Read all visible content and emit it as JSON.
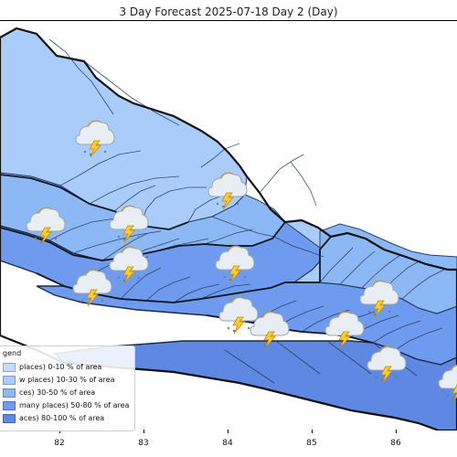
{
  "title": "3 Day Forecast 2025-07-18 Day 2 (Day)",
  "map": {
    "x_ticks": [
      "82",
      "83",
      "84",
      "85",
      "86"
    ],
    "colors": {
      "very_light": "#a9ccfb",
      "light": "#8db8f6",
      "medium": "#6e9bef",
      "dark": "#5f88e3",
      "border": "#1f2a44",
      "outline": "#2a2a2a"
    },
    "weather_icon": "thunderstorm-rain-icon"
  },
  "legend": {
    "title": "gend",
    "items": [
      {
        "label": "places)  0-10 % of area",
        "color": "#c7ddff"
      },
      {
        "label": "w places) 10-30 % of area",
        "color": "#a9ccfb"
      },
      {
        "label": "ces) 30-50  % of area",
        "color": "#8db8f6"
      },
      {
        "label": "many places) 50-80 % of area",
        "color": "#6e9bef"
      },
      {
        "label": "aces) 80-100 % of area",
        "color": "#5f88e3"
      }
    ]
  }
}
